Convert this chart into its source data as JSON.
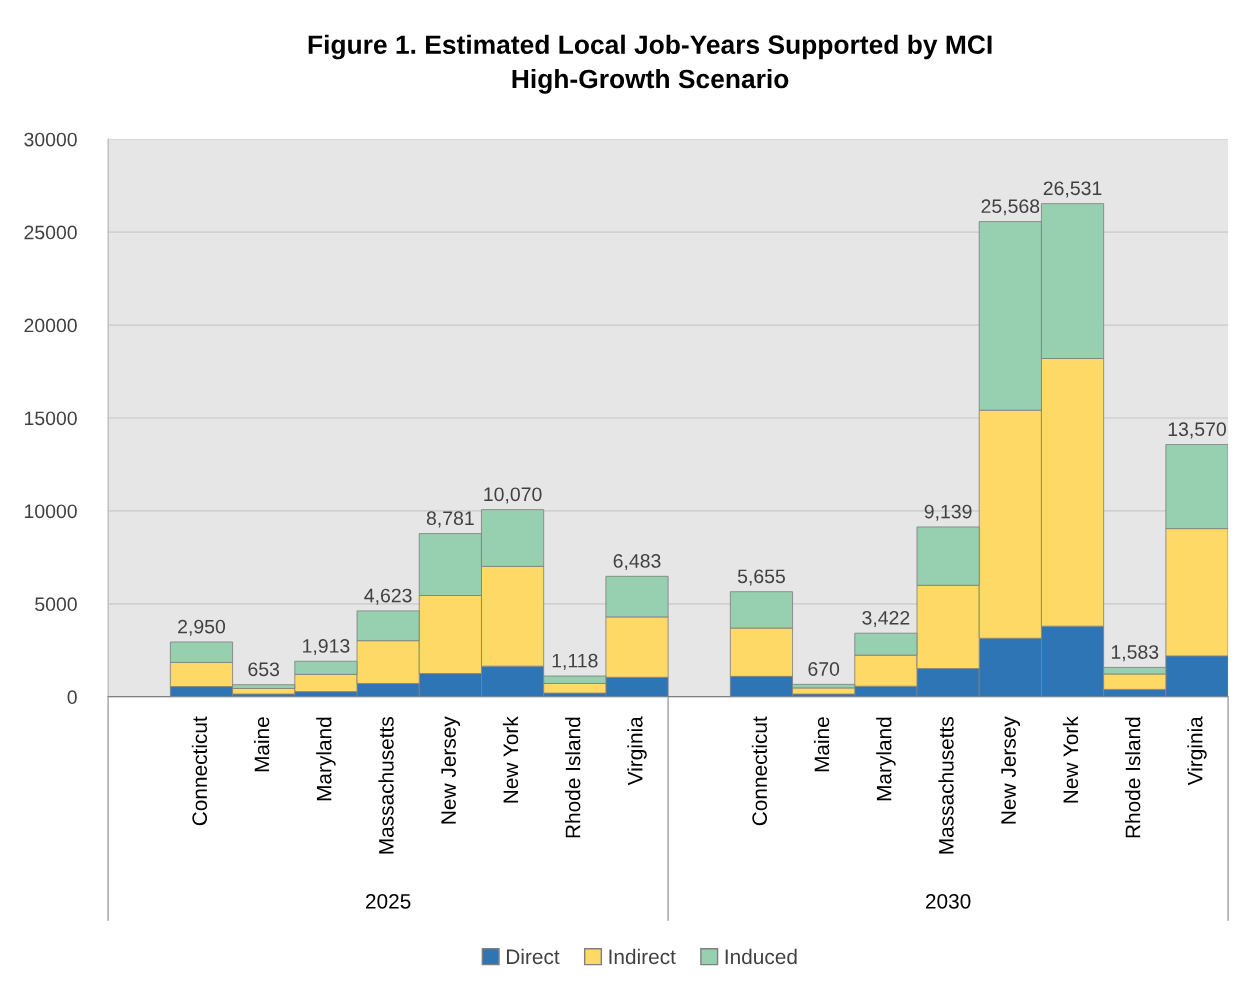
{
  "chart_data": {
    "type": "bar",
    "title": "Figure 1. Estimated Local Job-Years Supported by MCI\nHigh-Growth Scenario",
    "categories": [
      null,
      "Connecticut",
      "Maine",
      "Maryland",
      "Massachusetts",
      "New Jersey",
      "New York",
      "Rhode Island",
      "Virginia",
      null,
      "Connecticut",
      "Maine",
      "Maryland",
      "Massachusetts",
      "New Jersey",
      "New York",
      "Rhode Island",
      "Virginia"
    ],
    "stacked": true,
    "series": [
      {
        "name": "Direct",
        "color": "#2e75b6",
        "values": [
          null,
          550,
          150,
          280,
          720,
          1250,
          1650,
          200,
          1050,
          null,
          1100,
          150,
          570,
          1520,
          3150,
          3800,
          400,
          2200
        ]
      },
      {
        "name": "Indirect",
        "color": "#ffd966",
        "values": [
          null,
          1300,
          300,
          930,
          2300,
          4200,
          5370,
          520,
          3250,
          null,
          2600,
          330,
          1670,
          4480,
          12270,
          14400,
          830,
          6850
        ]
      },
      {
        "name": "Induced",
        "color": "#97d0b0",
        "values": [
          null,
          1100,
          203,
          703,
          1603,
          3331,
          3050,
          398,
          2183,
          null,
          1955,
          190,
          1182,
          3139,
          10148,
          8331,
          353,
          4520
        ]
      }
    ],
    "totals": [
      null,
      "2,950",
      "653",
      "1,913",
      "4,623",
      "8,781",
      "10,070",
      "1,118",
      "6,483",
      null,
      "5,655",
      "670",
      "3,422",
      "9,139",
      "25,568",
      "26,531",
      "1,583",
      "13,570"
    ],
    "annotations": [
      "2025",
      "2030"
    ],
    "ylim": [
      0,
      30000
    ],
    "yticks": [
      0,
      5000,
      10000,
      15000,
      20000,
      25000,
      30000
    ],
    "grid": "y",
    "legend": "bottom"
  }
}
